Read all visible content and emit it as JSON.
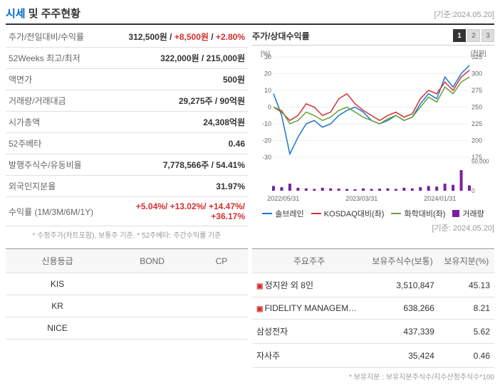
{
  "header": {
    "title_blue": "시세",
    "title_rest": " 및 주주현황",
    "date": "[기준:2024.05.20]"
  },
  "info_rows": [
    {
      "label": "주가/전일대비/수익률",
      "value_html": "price_row"
    },
    {
      "label": "52Weeks 최고/최저",
      "value": "322,000원 / 215,000원"
    },
    {
      "label": "액면가",
      "value": "500원"
    },
    {
      "label": "거래량/거래대금",
      "value": "29,275주 / 90억원"
    },
    {
      "label": "시가총액",
      "value": "24,308억원"
    },
    {
      "label": "52주베타",
      "value": "0.46"
    },
    {
      "label": "발행주식수/유동비율",
      "value": "7,778,566주 / 54.41%"
    },
    {
      "label": "외국인지분율",
      "value": "31.97%"
    },
    {
      "label": "수익률 (1M/3M/6M/1Y)",
      "value_html": "return_row"
    }
  ],
  "price_row": {
    "price": "312,500원",
    "change": "+8,500원",
    "pct": "+2.80%"
  },
  "return_row": "+5.04%/ +13.02%/ +14.47%/ +36.17%",
  "footnote_left": "* 수정주가(차트포함), 보통주 기준, * 52주베타: 주간수익률 기준",
  "chart": {
    "title": "주가/상대수익률",
    "pager": [
      "1",
      "2",
      "3"
    ],
    "date": "[기준: 2024.05.20]",
    "y_left_label": "[%]",
    "y_right_label": "[천원]",
    "y_left_ticks": [
      30,
      20,
      10,
      0,
      -10,
      -20,
      -30
    ],
    "y_left_range": [
      -30,
      30
    ],
    "y_right_ticks": [
      325,
      300,
      275,
      250,
      225,
      200,
      175
    ],
    "y_right_vol_ticks": [
      50000,
      0
    ],
    "x_labels": [
      "2022/05/31",
      "2023/03/31",
      "2024/01/31"
    ],
    "x_positions": [
      0.05,
      0.45,
      0.85
    ],
    "series": [
      {
        "name": "솔브레인",
        "color": "#1976d2",
        "type": "line",
        "data": [
          8,
          -5,
          -28,
          -18,
          -10,
          -8,
          -12,
          -10,
          -5,
          -2,
          0,
          -3,
          -8,
          -10,
          -8,
          -5,
          -8,
          -6,
          2,
          8,
          5,
          18,
          12,
          20,
          25
        ]
      },
      {
        "name": "KOSDAQ대비(좌)",
        "color": "#d32f2f",
        "type": "line",
        "data": [
          0,
          -3,
          -8,
          -5,
          2,
          0,
          -5,
          -3,
          5,
          8,
          2,
          -2,
          -5,
          -8,
          -5,
          -3,
          -6,
          -4,
          5,
          10,
          8,
          15,
          10,
          18,
          22
        ]
      },
      {
        "name": "화학대비(좌)",
        "color": "#689f38",
        "type": "line",
        "data": [
          0,
          -2,
          -10,
          -8,
          -3,
          -5,
          -8,
          -6,
          -2,
          0,
          -3,
          -6,
          -8,
          -10,
          -7,
          -5,
          -8,
          -6,
          0,
          6,
          3,
          12,
          8,
          15,
          18
        ]
      },
      {
        "name": "거래량",
        "color": "#7b1fa2",
        "type": "bar",
        "data": [
          8000,
          6000,
          12000,
          5000,
          4000,
          3000,
          5000,
          4000,
          3500,
          3000,
          2500,
          4000,
          3000,
          3500,
          4000,
          3000,
          5000,
          4000,
          6000,
          8000,
          7000,
          12000,
          10000,
          35000,
          9000
        ]
      }
    ],
    "vol_max": 50000,
    "grid_color": "#e0e0e0",
    "bg_color": "#ffffff"
  },
  "legend_items": [
    {
      "label": "솔브레인",
      "color": "#1976d2",
      "type": "line"
    },
    {
      "label": "KOSDAQ대비(좌)",
      "color": "#d32f2f",
      "type": "line"
    },
    {
      "label": "화학대비(좌)",
      "color": "#689f38",
      "type": "line"
    },
    {
      "label": "거래량",
      "color": "#7b1fa2",
      "type": "box"
    }
  ],
  "rating": {
    "headers": [
      "신용등급",
      "BOND",
      "CP"
    ],
    "rows": [
      [
        "KIS",
        "",
        ""
      ],
      [
        "KR",
        "",
        ""
      ],
      [
        "NICE",
        "",
        ""
      ]
    ]
  },
  "shareholders": {
    "headers": [
      "주요주주",
      "보유주식수(보통)",
      "보유지분(%)"
    ],
    "rows": [
      {
        "expand": true,
        "name": "정지완 외 8인",
        "shares": "3,510,847",
        "pct": "45.13"
      },
      {
        "expand": true,
        "name": "FIDELITY MANAGEM…",
        "shares": "638,266",
        "pct": "8.21"
      },
      {
        "expand": false,
        "name": "삼성전자",
        "shares": "437,339",
        "pct": "5.62"
      },
      {
        "expand": false,
        "name": "자사주",
        "shares": "35,424",
        "pct": "0.46"
      }
    ],
    "footnote": "* 보유지분 : 보유지분주식수/지수산정주식수*100"
  }
}
